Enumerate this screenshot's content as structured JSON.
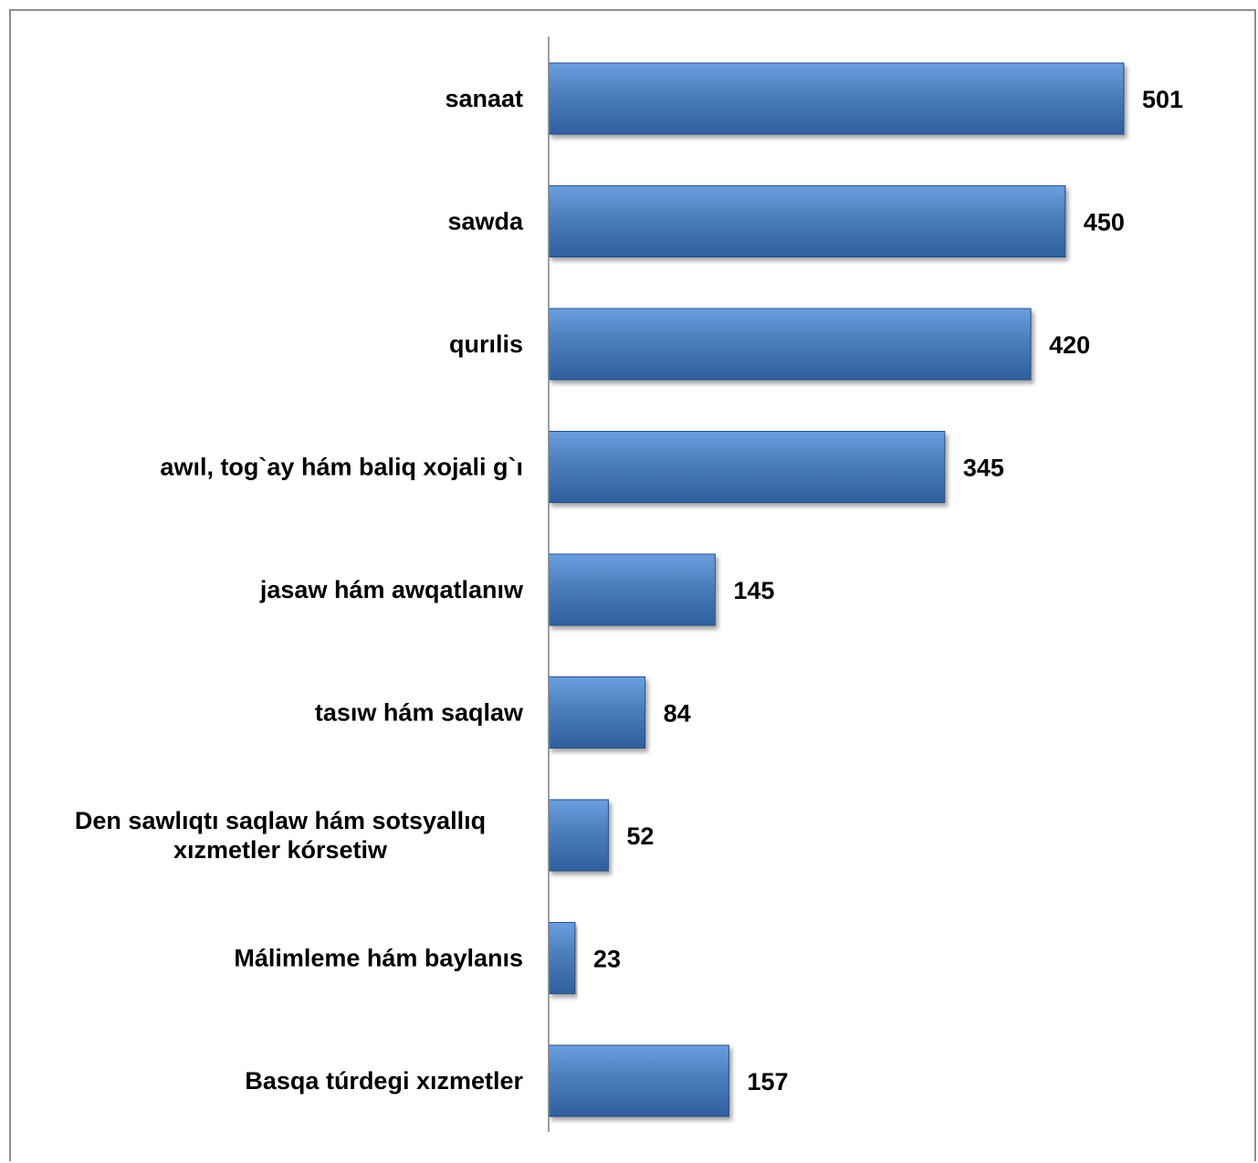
{
  "chart_data": {
    "type": "bar",
    "orientation": "horizontal",
    "categories": [
      "sanaat",
      "sawda",
      "qurılis",
      "awıl, tog`ay hám baliq xojali g`ı",
      "jasaw hám awqatlanıw",
      "tasıw hám saqlaw",
      "Den sawlıqtı saqlaw hám sotsyallıq xızmetler kórsetiw",
      "Málimleme hám baylanıs",
      "Basqa túrdegi xızmetler"
    ],
    "category_lines": [
      [
        "sanaat"
      ],
      [
        "sawda"
      ],
      [
        "qurılis"
      ],
      [
        "awıl, tog`ay hám baliq xojali g`ı"
      ],
      [
        "jasaw hám awqatlanıw"
      ],
      [
        "tasıw hám saqlaw"
      ],
      [
        "Den sawlıqtı saqlaw hám sotsyallıq",
        "xızmetler kórsetiw"
      ],
      [
        "Málimleme hám baylanıs"
      ],
      [
        "Basqa túrdegi xızmetler"
      ]
    ],
    "values": [
      501,
      450,
      420,
      345,
      145,
      84,
      52,
      23,
      157
    ],
    "data_labels": [
      "501",
      "450",
      "420",
      "345",
      "145",
      "84",
      "52",
      "23",
      "157"
    ],
    "xlim": [
      0,
      501
    ],
    "grid": false,
    "legend": "none",
    "bar_color": "#4a7ebb",
    "bar_color_light": "#6a9ee0",
    "bar_color_dark": "#2f5f9e",
    "bar_edge_color": "#24508a",
    "axis_color": "#7f7f7f",
    "frame_color": "#8c8c8c"
  }
}
